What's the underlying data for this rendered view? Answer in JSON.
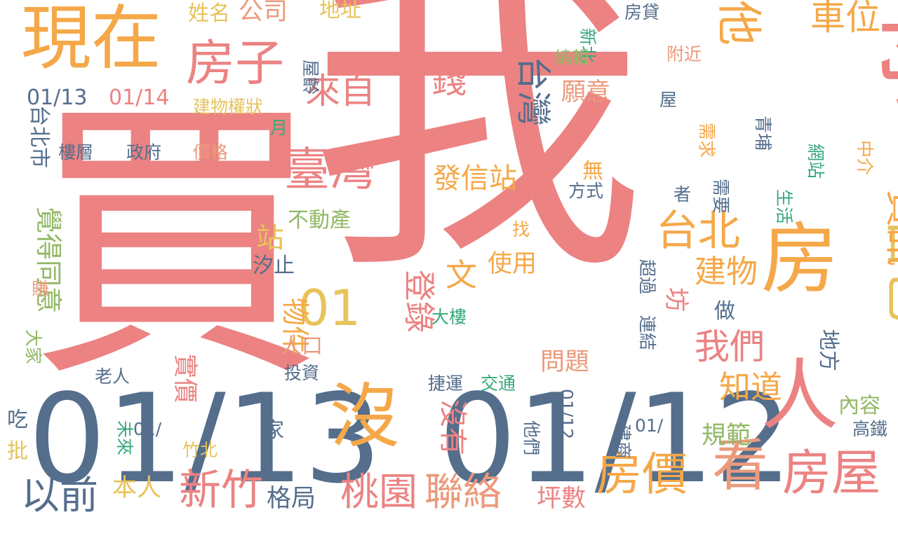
{
  "palette": {
    "red": "#ec8282",
    "orange": "#f5a849",
    "gold": "#e7c35a",
    "slate": "#546e8c",
    "green": "#92b865",
    "teal": "#38a87c",
    "salmon": "#eb9a7c"
  },
  "words": [
    {
      "text": "我",
      "color": "red",
      "vertical": false
    },
    {
      "text": "買",
      "color": "red",
      "vertical": false
    },
    {
      "text": "01/13",
      "color": "slate",
      "vertical": false
    },
    {
      "text": "01/12",
      "color": "slate",
      "vertical": false
    },
    {
      "text": "你",
      "color": "red",
      "vertical": true
    },
    {
      "text": "房",
      "color": "orange",
      "vertical": false
    },
    {
      "text": "人",
      "color": "red",
      "vertical": false
    },
    {
      "text": "現在",
      "color": "orange",
      "vertical": false
    },
    {
      "text": "沒",
      "color": "orange",
      "vertical": false
    },
    {
      "text": "看",
      "color": "salmon",
      "vertical": false
    },
    {
      "text": "房屋",
      "color": "red",
      "vertical": false
    },
    {
      "text": "房價",
      "color": "orange",
      "vertical": false
    },
    {
      "text": "房子",
      "color": "red",
      "vertical": false
    },
    {
      "text": "臺灣",
      "color": "red",
      "vertical": false
    },
    {
      "text": "台北",
      "color": "orange",
      "vertical": false
    },
    {
      "text": "自己",
      "color": "gold",
      "vertical": true
    },
    {
      "text": "資訊",
      "color": "orange",
      "vertical": true
    },
    {
      "text": "01",
      "color": "gold",
      "vertical": false
    },
    {
      "text": "新竹",
      "color": "red",
      "vertical": false
    },
    {
      "text": "桃園",
      "color": "red",
      "vertical": false
    },
    {
      "text": "聯絡",
      "color": "salmon",
      "vertical": false
    },
    {
      "text": "以前",
      "color": "slate",
      "vertical": false
    },
    {
      "text": "他",
      "color": "orange",
      "vertical": true
    },
    {
      "text": "車位",
      "color": "orange",
      "vertical": false
    },
    {
      "text": "來自",
      "color": "red",
      "vertical": false
    },
    {
      "text": "錢",
      "color": "red",
      "vertical": false
    },
    {
      "text": "台灣",
      "color": "slate",
      "vertical": true
    },
    {
      "text": "我們",
      "color": "red",
      "vertical": false
    },
    {
      "text": "文",
      "color": "orange",
      "vertical": false
    },
    {
      "text": "登錄",
      "color": "red",
      "vertical": true
    },
    {
      "text": "發信站",
      "color": "orange",
      "vertical": false
    },
    {
      "text": "建物",
      "color": "orange",
      "vertical": false
    },
    {
      "text": "知道",
      "color": "orange",
      "vertical": false
    },
    {
      "text": "台北市",
      "color": "slate",
      "vertical": true
    },
    {
      "text": "覺得同意",
      "color": "green",
      "vertical": true
    },
    {
      "text": "01/13",
      "color": "slate",
      "vertical": false
    },
    {
      "text": "01/14",
      "color": "red",
      "vertical": false
    },
    {
      "text": "公司",
      "color": "salmon",
      "vertical": false
    },
    {
      "text": "地址",
      "color": "gold",
      "vertical": false
    },
    {
      "text": "姓名",
      "color": "gold",
      "vertical": false
    },
    {
      "text": "建物權狀",
      "color": "gold",
      "vertical": false
    },
    {
      "text": "屋齡",
      "color": "slate",
      "vertical": true
    },
    {
      "text": "願意",
      "color": "salmon",
      "vertical": false
    },
    {
      "text": "物件",
      "color": "orange",
      "vertical": true
    },
    {
      "text": "站",
      "color": "gold",
      "vertical": false
    },
    {
      "text": "坊",
      "color": "red",
      "vertical": true
    },
    {
      "text": "使用",
      "color": "orange",
      "vertical": false
    },
    {
      "text": "問題",
      "color": "salmon",
      "vertical": false
    },
    {
      "text": "實價",
      "color": "red",
      "vertical": true
    },
    {
      "text": "沒有",
      "color": "red",
      "vertical": true
    },
    {
      "text": "格局",
      "color": "slate",
      "vertical": false
    },
    {
      "text": "本人",
      "color": "gold",
      "vertical": false
    },
    {
      "text": "坪數",
      "color": "red",
      "vertical": false
    },
    {
      "text": "規範",
      "color": "green",
      "vertical": false
    },
    {
      "text": "內容",
      "color": "green",
      "vertical": false
    },
    {
      "text": "地方",
      "color": "slate",
      "vertical": true
    },
    {
      "text": "做",
      "color": "slate",
      "vertical": false
    },
    {
      "text": "方式",
      "color": "slate",
      "vertical": false
    },
    {
      "text": "無",
      "color": "orange",
      "vertical": false
    },
    {
      "text": "不動產",
      "color": "green",
      "vertical": false
    },
    {
      "text": "汐止",
      "color": "slate",
      "vertical": false
    },
    {
      "text": "人口",
      "color": "salmon",
      "vertical": false
    },
    {
      "text": "大樓",
      "color": "teal",
      "vertical": false
    },
    {
      "text": "投資",
      "color": "slate",
      "vertical": false
    },
    {
      "text": "捷運",
      "color": "slate",
      "vertical": false
    },
    {
      "text": "交通",
      "color": "teal",
      "vertical": false
    },
    {
      "text": "老人",
      "color": "slate",
      "vertical": false
    },
    {
      "text": "家",
      "color": "slate",
      "vertical": false
    },
    {
      "text": "吃",
      "color": "slate",
      "vertical": false
    },
    {
      "text": "批",
      "color": "gold",
      "vertical": false
    },
    {
      "text": "未來",
      "color": "teal",
      "vertical": true
    },
    {
      "text": "01/",
      "color": "slate",
      "vertical": false
    },
    {
      "text": "竹北",
      "color": "gold",
      "vertical": false
    },
    {
      "text": "他們",
      "color": "slate",
      "vertical": true
    },
    {
      "text": "01/12",
      "color": "slate",
      "vertical": true
    },
    {
      "text": "建商",
      "color": "slate",
      "vertical": true
    },
    {
      "text": "01/",
      "color": "slate",
      "vertical": false
    },
    {
      "text": "高鐵",
      "color": "slate",
      "vertical": false
    },
    {
      "text": "超過",
      "color": "slate",
      "vertical": true
    },
    {
      "text": "連結",
      "color": "slate",
      "vertical": true
    },
    {
      "text": "需要",
      "color": "slate",
      "vertical": true
    },
    {
      "text": "者",
      "color": "slate",
      "vertical": false
    },
    {
      "text": "需求",
      "color": "orange",
      "vertical": true
    },
    {
      "text": "青埔",
      "color": "slate",
      "vertical": true
    },
    {
      "text": "網站",
      "color": "teal",
      "vertical": true
    },
    {
      "text": "中介",
      "color": "orange",
      "vertical": true
    },
    {
      "text": "生活",
      "color": "teal",
      "vertical": true
    },
    {
      "text": "房貸",
      "color": "slate",
      "vertical": false
    },
    {
      "text": "新北",
      "color": "teal",
      "vertical": true
    },
    {
      "text": "編輯",
      "color": "green",
      "vertical": false
    },
    {
      "text": "附近",
      "color": "salmon",
      "vertical": false
    },
    {
      "text": "屋",
      "color": "slate",
      "vertical": false
    },
    {
      "text": "月",
      "color": "teal",
      "vertical": false
    },
    {
      "text": "找",
      "color": "orange",
      "vertical": false
    },
    {
      "text": "大家",
      "color": "green",
      "vertical": true
    },
    {
      "text": "賺",
      "color": "salmon",
      "vertical": false
    },
    {
      "text": "樓層",
      "color": "slate",
      "vertical": false
    },
    {
      "text": "政府",
      "color": "slate",
      "vertical": false
    },
    {
      "text": "價格",
      "color": "salmon",
      "vertical": false
    }
  ]
}
